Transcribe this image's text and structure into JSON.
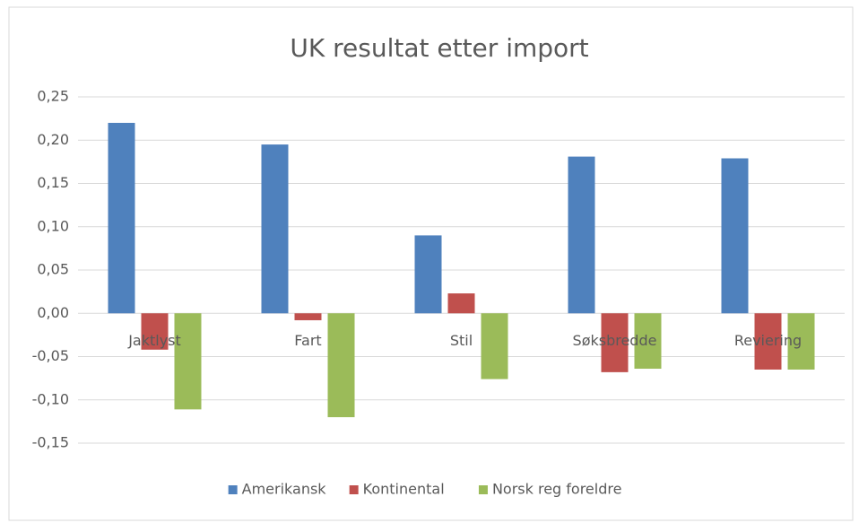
{
  "chart_data": {
    "type": "bar",
    "title": "UK resultat etter import",
    "categories": [
      "Jaktlyst",
      "Fart",
      "Stil",
      "Søksbredde",
      "Reviering"
    ],
    "series": [
      {
        "name": "Amerikansk",
        "color": "#4f81bd",
        "values": [
          0.22,
          0.195,
          0.09,
          0.181,
          0.179
        ]
      },
      {
        "name": "Kontinental",
        "color": "#c0504d",
        "values": [
          -0.042,
          -0.008,
          0.023,
          -0.068,
          -0.065
        ]
      },
      {
        "name": "Norsk reg foreldre",
        "color": "#9bbb59",
        "values": [
          -0.111,
          -0.12,
          -0.076,
          -0.064,
          -0.065
        ]
      }
    ],
    "ylim": [
      -0.15,
      0.25
    ],
    "yticks": [
      {
        "value": -0.15,
        "label": "-0,15"
      },
      {
        "value": -0.1,
        "label": "-0,10"
      },
      {
        "value": -0.05,
        "label": "-0,05"
      },
      {
        "value": 0,
        "label": "0,00"
      },
      {
        "value": 0.05,
        "label": "0,05"
      },
      {
        "value": 0.1,
        "label": "0,10"
      },
      {
        "value": 0.15,
        "label": "0,15"
      },
      {
        "value": 0.2,
        "label": "0,20"
      },
      {
        "value": 0.25,
        "label": "0,25"
      }
    ],
    "grid": true,
    "legend": "bottom"
  }
}
